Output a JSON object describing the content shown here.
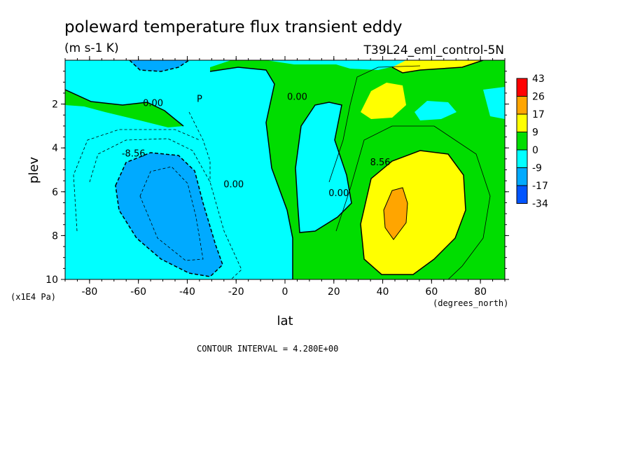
{
  "chart_data": {
    "type": "contour",
    "title": "poleward temperature flux transient eddy",
    "units": "(m s-1 K)",
    "dataset": "T39L24_eml_control-5N",
    "xlabel": "lat",
    "xunits": "(degrees_north)",
    "ylabel": "plev",
    "yunits": "(x1E4 Pa)",
    "xlim": [
      -90,
      90
    ],
    "ylim": [
      10,
      0
    ],
    "xticks": [
      -80,
      -60,
      -40,
      -20,
      0,
      20,
      40,
      60,
      80
    ],
    "yticks": [
      2,
      4,
      6,
      8,
      10
    ],
    "contour_interval_text": "CONTOUR INTERVAL = 4.280E+00",
    "contour_labels": [
      {
        "text": "0.00",
        "lat": -54,
        "plev": 2.1
      },
      {
        "text": "0.00",
        "lat": 5,
        "plev": 1.8
      },
      {
        "text": "0.00",
        "lat": -21,
        "plev": 5.8
      },
      {
        "text": "0.00",
        "lat": 22,
        "plev": 6.2
      },
      {
        "text": "-8.56",
        "lat": -62,
        "plev": 4.4
      },
      {
        "text": "8.56",
        "lat": 39,
        "plev": 4.8
      },
      {
        "text": "P",
        "lat": -35,
        "plev": 1.9
      }
    ],
    "colorbar": [
      {
        "label": "43",
        "color": "#ff0000"
      },
      {
        "label": "26",
        "color": "#ffa500"
      },
      {
        "label": "17",
        "color": "#ffff00"
      },
      {
        "label": "9",
        "color": "#00dd00"
      },
      {
        "label": "0",
        "color": "#00ffff"
      },
      {
        "label": "-9",
        "color": "#00aaff"
      },
      {
        "label": "-17",
        "color": "#0055ff"
      },
      {
        "label": "-34",
        "color": null
      }
    ],
    "regions": [
      {
        "level": "negative_weak",
        "description": "most of field cyan"
      },
      {
        "level": "negative_moderate",
        "center_lat": -50,
        "center_plev": 6.5,
        "value_min": -17
      },
      {
        "level": "positive_weak",
        "center_lat": 20,
        "center_plev": 5
      },
      {
        "level": "positive_moderate",
        "center_lat": 45,
        "center_plev": 6
      },
      {
        "level": "positive_strong",
        "center_lat": 45,
        "center_plev": 7.1,
        "value_max": 26
      }
    ]
  }
}
